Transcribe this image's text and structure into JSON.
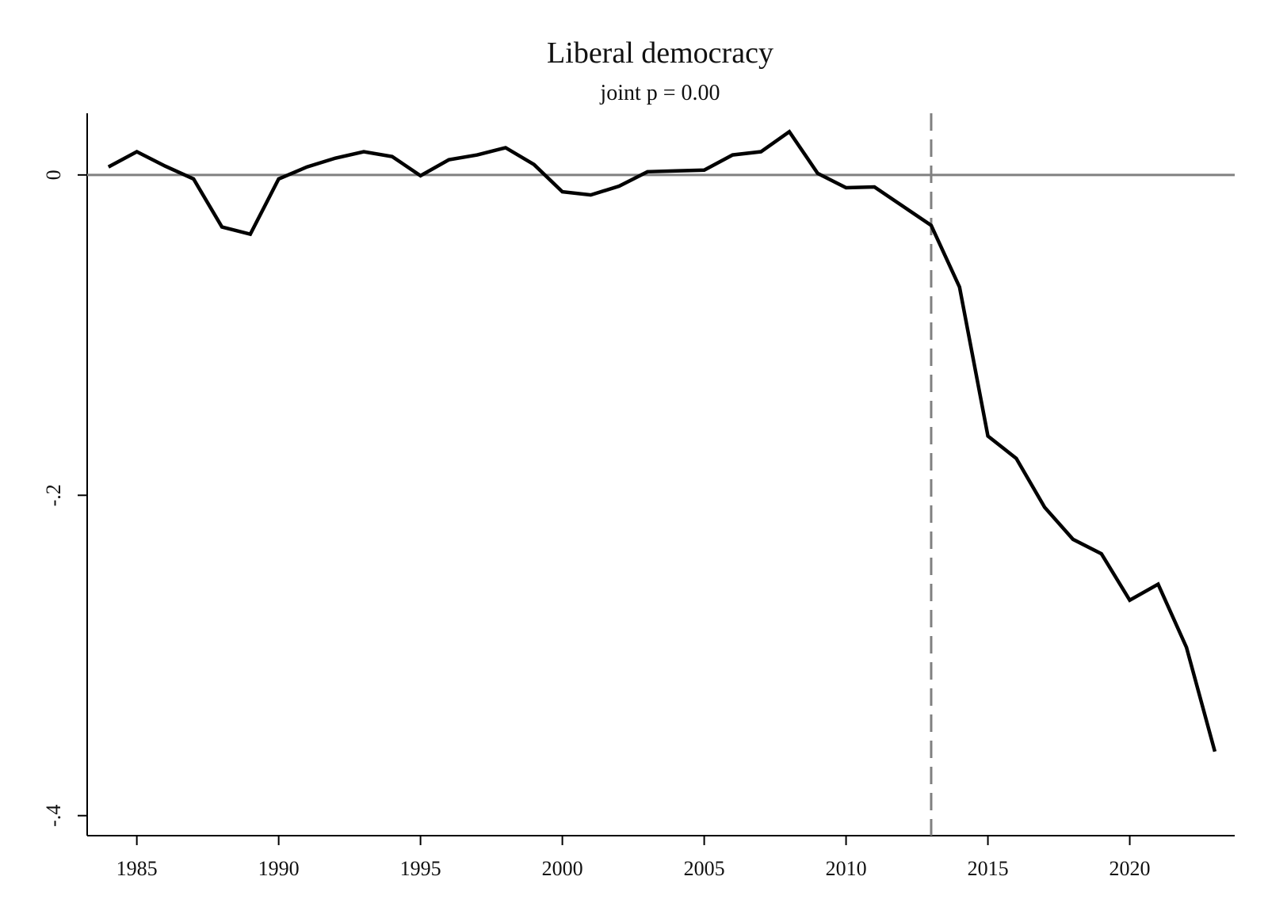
{
  "chart_data": {
    "type": "line",
    "title": "Liberal democracy",
    "subtitle": "joint p = 0.00",
    "xlabel": "",
    "ylabel": "",
    "xlim": [
      1983.25,
      2023.7
    ],
    "ylim": [
      -0.4125,
      0.0385
    ],
    "x_ticks": [
      1985,
      1990,
      1995,
      2000,
      2005,
      2010,
      2015,
      2020
    ],
    "x_tick_labels": [
      "1985",
      "1990",
      "1995",
      "2000",
      "2005",
      "2010",
      "2015",
      "2020"
    ],
    "y_ticks": [
      0,
      -0.2,
      -0.4
    ],
    "y_tick_labels": [
      "0",
      "-.2",
      "-.4"
    ],
    "reference_lines": {
      "horizontal_y": 0,
      "vertical_x": 2013,
      "horizontal_color": "#808080",
      "vertical_color": "#808080",
      "vertical_style": "dashed"
    },
    "series": [
      {
        "color": "#000000",
        "x": [
          1984,
          1985,
          1986,
          1987,
          1988,
          1989,
          1990,
          1991,
          1992,
          1993,
          1994,
          1995,
          1996,
          1997,
          1998,
          1999,
          2000,
          2001,
          2002,
          2003,
          2004,
          2005,
          2006,
          2007,
          2008,
          2009,
          2010,
          2011,
          2012,
          2013,
          2014,
          2015,
          2016,
          2017,
          2018,
          2019,
          2020,
          2021,
          2022,
          2023
        ],
        "values": [
          0.005,
          0.0145,
          0.0055,
          -0.0025,
          -0.0325,
          -0.037,
          -0.0025,
          0.005,
          0.0105,
          0.0145,
          0.0115,
          -0.0005,
          0.0095,
          0.0125,
          0.017,
          0.0065,
          -0.0105,
          -0.0125,
          -0.007,
          0.002,
          0.0025,
          0.003,
          0.0125,
          0.0145,
          0.027,
          0.001,
          -0.008,
          -0.0075,
          -0.0195,
          -0.0315,
          -0.07,
          -0.163,
          -0.177,
          -0.2075,
          -0.2275,
          -0.2365,
          -0.2655,
          -0.2555,
          -0.295,
          -0.36
        ]
      }
    ]
  }
}
